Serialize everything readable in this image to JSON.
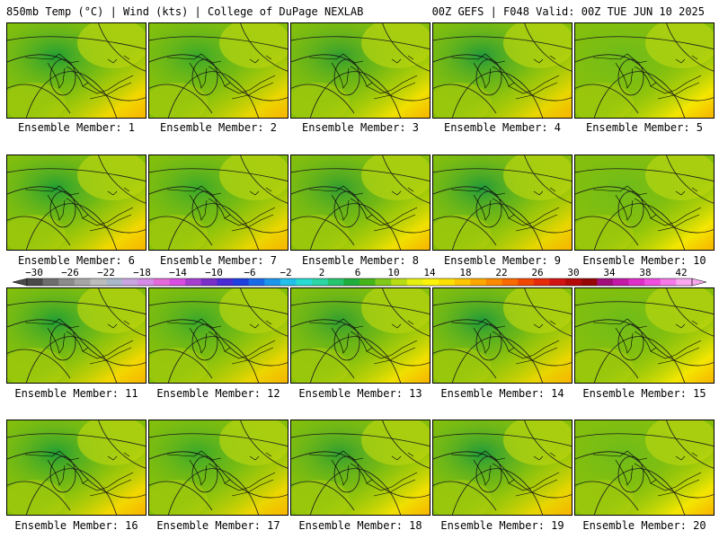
{
  "header": {
    "left": "850mb Temp (°C) | Wind (kts) | College of DuPage NEXLAB",
    "right": "00Z GEFS | F048 Valid: 00Z TUE JUN 10 2025"
  },
  "members": [
    "Ensemble Member: 1",
    "Ensemble Member: 2",
    "Ensemble Member: 3",
    "Ensemble Member: 4",
    "Ensemble Member: 5",
    "Ensemble Member: 6",
    "Ensemble Member: 7",
    "Ensemble Member: 8",
    "Ensemble Member: 9",
    "Ensemble Member: 10",
    "Ensemble Member: 11",
    "Ensemble Member: 12",
    "Ensemble Member: 13",
    "Ensemble Member: 14",
    "Ensemble Member: 15",
    "Ensemble Member: 16",
    "Ensemble Member: 17",
    "Ensemble Member: 18",
    "Ensemble Member: 19",
    "Ensemble Member: 20"
  ],
  "colorbar": {
    "labels": [
      "−30",
      "−26",
      "−22",
      "−18",
      "−14",
      "−10",
      "−6",
      "−2",
      "2",
      "6",
      "10",
      "14",
      "18",
      "22",
      "26",
      "30",
      "34",
      "38",
      "42"
    ],
    "colors": [
      "#4a4a4a",
      "#6e6e6e",
      "#8c8c8c",
      "#a6a6a6",
      "#bcbcbc",
      "#a9b8c9",
      "#c9a5e0",
      "#d48ae6",
      "#e36bd9",
      "#d84ee0",
      "#a53fcf",
      "#7b2fc9",
      "#4b2bd6",
      "#1f3fe0",
      "#1a6ae8",
      "#1d95ea",
      "#22c0ea",
      "#29dbd3",
      "#2cd6a5",
      "#27c46f",
      "#1fae3b",
      "#45b51a",
      "#80c91a",
      "#b7dc14",
      "#e6ef10",
      "#fdf20a",
      "#fde000",
      "#fdc400",
      "#fda800",
      "#fb8a00",
      "#f96a00",
      "#f04800",
      "#e62a0c",
      "#d21414",
      "#b50a0a",
      "#960606",
      "#a1107a",
      "#c21aa6",
      "#e02ec9",
      "#f04fe0",
      "#f57ae8",
      "#f9a8f0"
    ]
  }
}
